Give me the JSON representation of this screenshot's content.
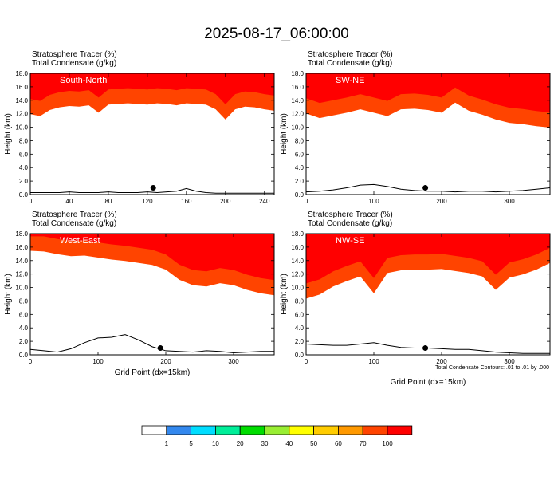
{
  "figure": {
    "title": "2025-08-17_06:00:00",
    "tracer_label": "Stratosphere Tracer   (%)",
    "condensate_label": "Total Condensate   (g/kg)",
    "ylabel": "Height (km)",
    "xlabel": "Grid Point (dx=15km)",
    "contour_note": "Total Condensate Contours: .01 to .01 by .000"
  },
  "colors": {
    "levels": [
      "#ffffff",
      "#3388ee",
      "#00ddff",
      "#00ee99",
      "#00dd00",
      "#99ee33",
      "#ffff00",
      "#ffcc00",
      "#ff9900",
      "#ff4400",
      "#ff0000"
    ],
    "terrain": "#000000"
  },
  "colorbar": {
    "labels": [
      "1",
      "5",
      "10",
      "20",
      "30",
      "40",
      "50",
      "60",
      "70",
      "100"
    ]
  },
  "chart_data": [
    {
      "type": "heatmap",
      "name": "South-North",
      "xlim": [
        0,
        250
      ],
      "ylim": [
        0,
        18
      ],
      "xticks": [
        0,
        40,
        80,
        120,
        160,
        200,
        240
      ],
      "yticks": [
        0.0,
        2.0,
        4.0,
        6.0,
        8.0,
        10.0,
        12.0,
        14.0,
        16.0,
        18.0
      ],
      "x": [
        0,
        10,
        20,
        30,
        40,
        50,
        60,
        70,
        80,
        90,
        100,
        110,
        120,
        130,
        140,
        150,
        160,
        170,
        180,
        190,
        200,
        210,
        220,
        230,
        240,
        250
      ],
      "tracer_base_km": [
        11.8,
        11.5,
        12.4,
        12.8,
        13.0,
        12.9,
        13.1,
        12.0,
        13.2,
        13.3,
        13.4,
        13.3,
        13.2,
        13.4,
        13.3,
        13.1,
        13.4,
        13.3,
        13.2,
        12.5,
        11.0,
        12.5,
        12.9,
        12.8,
        12.5,
        12.3
      ],
      "terrain_km": [
        0.3,
        0.3,
        0.3,
        0.3,
        0.4,
        0.3,
        0.3,
        0.3,
        0.4,
        0.3,
        0.3,
        0.3,
        0.4,
        0.3,
        0.4,
        0.5,
        0.9,
        0.5,
        0.3,
        0.2,
        0.2,
        0.2,
        0.2,
        0.2,
        0.2,
        0.2
      ],
      "marker": {
        "x": 126,
        "y": 1.0
      }
    },
    {
      "type": "heatmap",
      "name": "SW-NE",
      "xlim": [
        0,
        360
      ],
      "ylim": [
        0,
        18
      ],
      "xticks": [
        0,
        100,
        200,
        300
      ],
      "yticks": [
        0.0,
        2.0,
        4.0,
        6.0,
        8.0,
        10.0,
        12.0,
        14.0,
        16.0,
        18.0
      ],
      "x": [
        0,
        20,
        40,
        60,
        80,
        100,
        120,
        140,
        160,
        180,
        200,
        220,
        240,
        260,
        280,
        300,
        320,
        340,
        360
      ],
      "tracer_base_km": [
        11.9,
        11.2,
        11.6,
        12.0,
        12.5,
        12.0,
        11.5,
        12.5,
        12.6,
        12.4,
        12.0,
        13.5,
        12.3,
        11.7,
        11.0,
        10.5,
        10.3,
        10.0,
        9.8
      ],
      "terrain_km": [
        0.4,
        0.5,
        0.7,
        1.0,
        1.4,
        1.5,
        1.2,
        0.8,
        0.6,
        0.5,
        0.5,
        0.4,
        0.5,
        0.5,
        0.4,
        0.5,
        0.6,
        0.8,
        1.0
      ],
      "marker": {
        "x": 176,
        "y": 1.0
      }
    },
    {
      "type": "heatmap",
      "name": "West-East",
      "xlim": [
        0,
        360
      ],
      "ylim": [
        0,
        18
      ],
      "xticks": [
        0,
        100,
        200,
        300
      ],
      "yticks": [
        0.0,
        2.0,
        4.0,
        6.0,
        8.0,
        10.0,
        12.0,
        14.0,
        16.0,
        18.0
      ],
      "x": [
        0,
        20,
        40,
        60,
        80,
        100,
        120,
        140,
        160,
        180,
        200,
        220,
        240,
        260,
        280,
        300,
        320,
        340,
        360
      ],
      "tracer_base_km": [
        15.3,
        15.2,
        14.8,
        14.5,
        14.6,
        14.3,
        14.0,
        13.8,
        13.5,
        13.2,
        12.5,
        11.0,
        10.2,
        10.0,
        10.5,
        10.2,
        9.5,
        9.0,
        8.7
      ],
      "terrain_km": [
        0.8,
        0.6,
        0.4,
        0.9,
        1.8,
        2.5,
        2.6,
        3.0,
        2.2,
        1.2,
        0.6,
        0.5,
        0.4,
        0.6,
        0.5,
        0.3,
        0.4,
        0.5,
        0.5
      ],
      "marker": {
        "x": 192,
        "y": 1.0
      }
    },
    {
      "type": "heatmap",
      "name": "NW-SE",
      "xlim": [
        0,
        360
      ],
      "ylim": [
        0,
        18
      ],
      "xticks": [
        0,
        100,
        200,
        300
      ],
      "yticks": [
        0.0,
        2.0,
        4.0,
        6.0,
        8.0,
        10.0,
        12.0,
        14.0,
        16.0,
        18.0
      ],
      "x": [
        0,
        20,
        40,
        60,
        80,
        100,
        120,
        140,
        160,
        180,
        200,
        220,
        240,
        260,
        280,
        300,
        320,
        340,
        360
      ],
      "tracer_base_km": [
        8.2,
        8.8,
        10.0,
        10.8,
        11.5,
        9.0,
        12.0,
        12.4,
        12.5,
        12.5,
        12.6,
        12.3,
        12.0,
        11.5,
        9.5,
        11.3,
        11.8,
        12.5,
        13.5
      ],
      "terrain_km": [
        1.6,
        1.5,
        1.4,
        1.4,
        1.6,
        1.8,
        1.4,
        1.1,
        1.0,
        1.0,
        0.9,
        0.8,
        0.8,
        0.6,
        0.4,
        0.3,
        0.2,
        0.2,
        0.2
      ],
      "marker": {
        "x": 176,
        "y": 1.0
      }
    }
  ]
}
